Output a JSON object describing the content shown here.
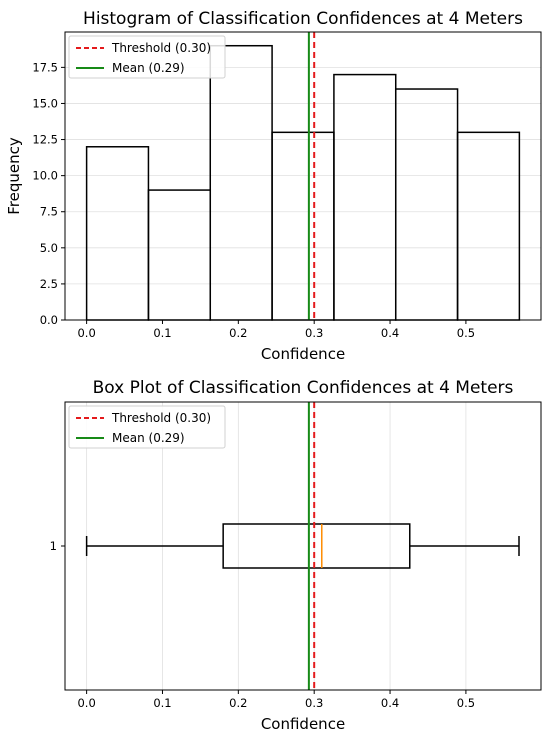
{
  "colors": {
    "threshold": "#e41a1c",
    "mean": "#178a17",
    "median": "#ff8c00",
    "bar_edge": "#000000",
    "grid": "#e0e0e0"
  },
  "chart_data": [
    {
      "type": "histogram",
      "title": "Histogram of Classification Confidences at 4 Meters",
      "xlabel": "Confidence",
      "ylabel": "Frequency",
      "bins": [
        {
          "start": 0.0,
          "end": 0.0815,
          "count": 12
        },
        {
          "start": 0.0815,
          "end": 0.163,
          "count": 9
        },
        {
          "start": 0.163,
          "end": 0.2445,
          "count": 19
        },
        {
          "start": 0.2445,
          "end": 0.326,
          "count": 13
        },
        {
          "start": 0.326,
          "end": 0.4075,
          "count": 17
        },
        {
          "start": 0.4075,
          "end": 0.489,
          "count": 16
        },
        {
          "start": 0.489,
          "end": 0.5705,
          "count": 13
        }
      ],
      "xlim": [
        -0.0285,
        0.599
      ],
      "ylim": [
        0,
        19.95
      ],
      "xticks": [
        0.0,
        0.1,
        0.2,
        0.3,
        0.4,
        0.5
      ],
      "xtick_labels": [
        "0.0",
        "0.1",
        "0.2",
        "0.3",
        "0.4",
        "0.5"
      ],
      "yticks": [
        0.0,
        2.5,
        5.0,
        7.5,
        10.0,
        12.5,
        15.0,
        17.5
      ],
      "ytick_labels": [
        "0.0",
        "2.5",
        "5.0",
        "7.5",
        "10.0",
        "12.5",
        "15.0",
        "17.5"
      ],
      "grid": "y",
      "lines": [
        {
          "name": "Threshold (0.30)",
          "x": 0.3,
          "style": "dashed",
          "color": "#e41a1c"
        },
        {
          "name": "Mean (0.29)",
          "x": 0.293,
          "style": "solid",
          "color": "#178a17"
        }
      ],
      "legend": [
        "Threshold (0.30)",
        "Mean (0.29)"
      ],
      "legend_loc": "upper-left"
    },
    {
      "type": "box",
      "title": "Box Plot of Classification Confidences at 4 Meters",
      "xlabel": "Confidence",
      "category_label": "1",
      "box": {
        "min": 0.0,
        "q1": 0.18,
        "median": 0.31,
        "q3": 0.426,
        "max": 0.57
      },
      "xlim": [
        -0.0285,
        0.599
      ],
      "xticks": [
        0.0,
        0.1,
        0.2,
        0.3,
        0.4,
        0.5
      ],
      "xtick_labels": [
        "0.0",
        "0.1",
        "0.2",
        "0.3",
        "0.4",
        "0.5"
      ],
      "grid": "x",
      "lines": [
        {
          "name": "Threshold (0.30)",
          "x": 0.3,
          "style": "dashed",
          "color": "#e41a1c"
        },
        {
          "name": "Mean (0.29)",
          "x": 0.293,
          "style": "solid",
          "color": "#178a17"
        }
      ],
      "legend": [
        "Threshold (0.30)",
        "Mean (0.29)"
      ],
      "legend_loc": "upper-left"
    }
  ]
}
